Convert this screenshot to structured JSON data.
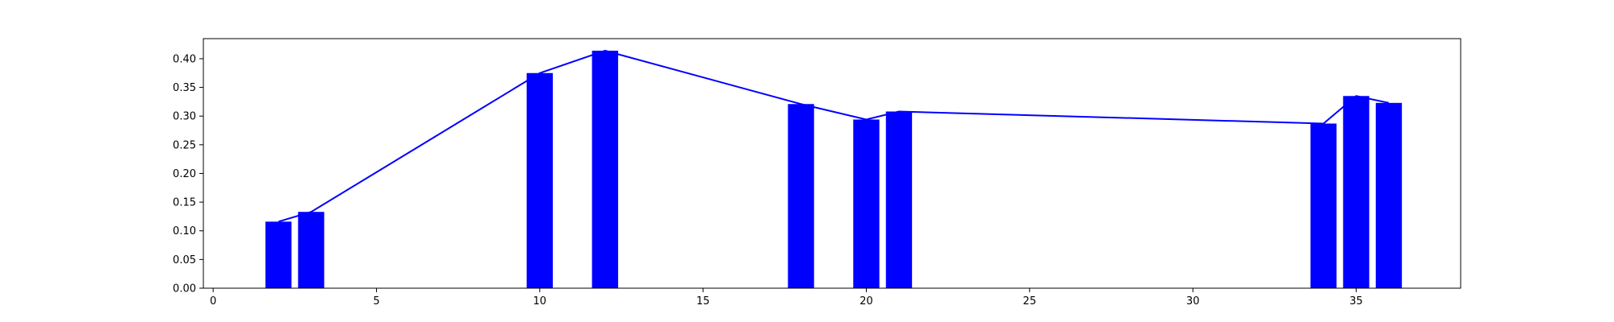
{
  "chart_data": {
    "type": "bar",
    "title": "",
    "xlabel": "",
    "ylabel": "",
    "x": [
      2,
      3,
      10,
      12,
      18,
      20,
      21,
      34,
      35,
      36
    ],
    "values": [
      0.116,
      0.133,
      0.375,
      0.414,
      0.321,
      0.294,
      0.308,
      0.287,
      0.335,
      0.323
    ],
    "line_values": [
      0.116,
      0.133,
      0.375,
      0.414,
      0.321,
      0.294,
      0.308,
      0.287,
      0.335,
      0.323
    ],
    "xlim": [
      -0.3,
      38.2
    ],
    "ylim": [
      0,
      0.435
    ],
    "xticks": [
      0,
      5,
      10,
      15,
      20,
      25,
      30,
      35
    ],
    "yticks": [
      0.0,
      0.05,
      0.1,
      0.15,
      0.2,
      0.25,
      0.3,
      0.35,
      0.4
    ],
    "xtick_labels": [
      "0",
      "5",
      "10",
      "15",
      "20",
      "25",
      "30",
      "35"
    ],
    "ytick_labels": [
      "0.00",
      "0.05",
      "0.10",
      "0.15",
      "0.20",
      "0.25",
      "0.30",
      "0.35",
      "0.40"
    ],
    "bar_width": 0.8,
    "grid": false,
    "bar_color": "#0000ff",
    "line_color": "#0000ff"
  }
}
